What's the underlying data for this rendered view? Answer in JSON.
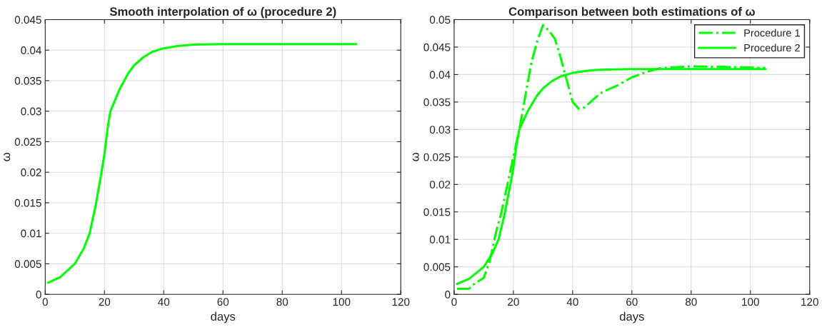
{
  "chart_data": [
    {
      "type": "line",
      "title": "Smooth interpolation of ω (procedure 2)",
      "xlabel": "days",
      "ylabel": "ω",
      "xlim": [
        0,
        120
      ],
      "ylim": [
        0,
        0.045
      ],
      "xticks": [
        0,
        20,
        40,
        60,
        80,
        100,
        120
      ],
      "yticks": [
        0,
        0.005,
        0.01,
        0.015,
        0.02,
        0.025,
        0.03,
        0.035,
        0.04,
        0.045
      ],
      "grid": true,
      "legend": false,
      "series": [
        {
          "color": "#00ff00",
          "line_style": "solid",
          "x": [
            1,
            5,
            10,
            13,
            15,
            17,
            19,
            20,
            21,
            22,
            25,
            28,
            30,
            33,
            36,
            40,
            45,
            50,
            60,
            80,
            105
          ],
          "values": [
            0.0019,
            0.0028,
            0.005,
            0.0075,
            0.01,
            0.0145,
            0.02,
            0.023,
            0.027,
            0.03,
            0.0335,
            0.0362,
            0.0375,
            0.0388,
            0.0397,
            0.0403,
            0.0407,
            0.0409,
            0.041,
            0.041,
            0.041
          ]
        }
      ]
    },
    {
      "type": "line",
      "title": "Comparison between both estimations of ω",
      "xlabel": "days",
      "ylabel": "ω",
      "xlim": [
        0,
        120
      ],
      "ylim": [
        0,
        0.05
      ],
      "xticks": [
        0,
        20,
        40,
        60,
        80,
        100,
        120
      ],
      "yticks": [
        0,
        0.005,
        0.01,
        0.015,
        0.02,
        0.025,
        0.03,
        0.035,
        0.04,
        0.045,
        0.05
      ],
      "grid": true,
      "legend": "top right",
      "series": [
        {
          "name": "Procedure 1",
          "color": "#00ff00",
          "line_style": "dashed",
          "x": [
            1,
            5,
            7,
            10,
            12,
            14,
            16,
            18,
            20,
            22,
            24,
            26,
            28,
            30,
            32,
            34,
            36,
            38,
            40,
            42,
            44,
            47,
            50,
            55,
            60,
            65,
            70,
            80,
            90,
            105
          ],
          "values": [
            0.001,
            0.001,
            0.002,
            0.003,
            0.006,
            0.011,
            0.015,
            0.02,
            0.025,
            0.03,
            0.036,
            0.042,
            0.046,
            0.049,
            0.048,
            0.0465,
            0.043,
            0.039,
            0.035,
            0.0338,
            0.034,
            0.0355,
            0.0368,
            0.038,
            0.0395,
            0.0405,
            0.0412,
            0.0415,
            0.0414,
            0.0412
          ]
        },
        {
          "name": "Procedure 2",
          "color": "#00ff00",
          "line_style": "solid",
          "x": [
            1,
            5,
            10,
            13,
            15,
            17,
            19,
            20,
            21,
            22,
            25,
            28,
            30,
            33,
            36,
            40,
            45,
            50,
            60,
            80,
            105
          ],
          "values": [
            0.0019,
            0.0028,
            0.005,
            0.0075,
            0.01,
            0.0145,
            0.02,
            0.023,
            0.027,
            0.03,
            0.0335,
            0.0362,
            0.0375,
            0.0388,
            0.0397,
            0.0403,
            0.0407,
            0.0409,
            0.041,
            0.041,
            0.041
          ]
        }
      ]
    }
  ]
}
